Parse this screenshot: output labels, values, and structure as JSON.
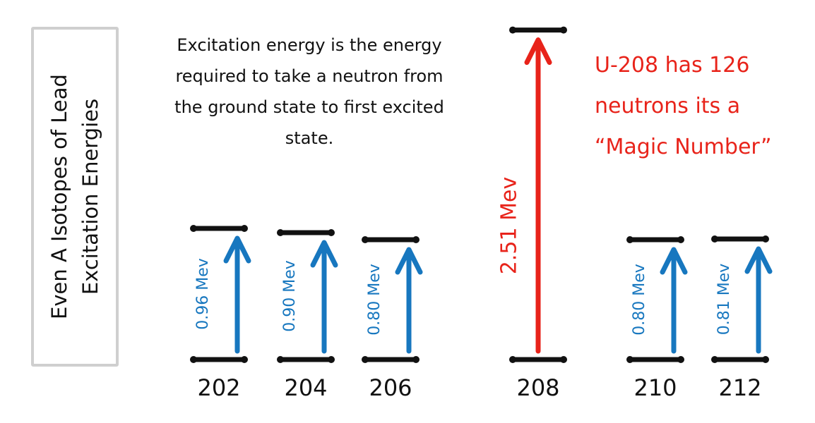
{
  "title": {
    "line1": "Even A Isotopes of Lead",
    "line2": "Excitation Energies"
  },
  "explanation": "Excitation energy is the energy required to take a neutron from the ground state to first excited state.",
  "note": {
    "lines": [
      "U-208 has 126",
      "neutrons its a",
      "“Magic Number”"
    ]
  },
  "colors": {
    "normal": "#1777bf",
    "magic": "#e8231a",
    "level": "#111111",
    "frame": "#cfcfcf"
  },
  "isotopes": [
    {
      "mass": "202",
      "energy": 0.96,
      "label": "0.96 Mev",
      "magic": false
    },
    {
      "mass": "204",
      "energy": 0.9,
      "label": "0.90 Mev",
      "magic": false
    },
    {
      "mass": "206",
      "energy": 0.8,
      "label": "0.80 Mev",
      "magic": false
    },
    {
      "mass": "208",
      "energy": 2.51,
      "label": "2.51 Mev",
      "magic": true
    },
    {
      "mass": "210",
      "energy": 0.8,
      "label": "0.80 Mev",
      "magic": false
    },
    {
      "mass": "212",
      "energy": 0.81,
      "label": "0.81 Mev",
      "magic": false
    }
  ]
}
